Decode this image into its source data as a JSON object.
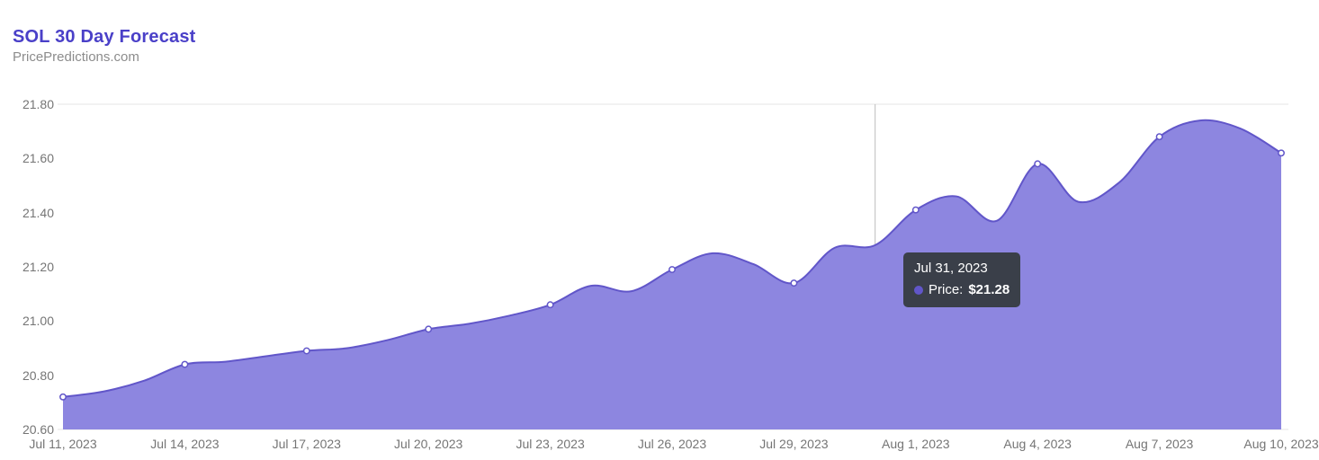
{
  "header": {
    "title": "SOL 30 Day Forecast",
    "subtitle": "PricePredictions.com"
  },
  "tooltip": {
    "date": "Jul 31, 2023",
    "series_label": "Price:",
    "value": "$21.28"
  },
  "colors": {
    "title": "#4a40c8",
    "subtitle": "#8c8c8c",
    "axis_text": "#757575",
    "line": "#6156c9",
    "area_fill": "#8d86e0",
    "marker_fill": "#ffffff",
    "grid": "#e5e5e5",
    "crosshair": "#bdbdbd",
    "tooltip_bg": "#3a3f49",
    "tooltip_text": "#ffffff",
    "series_dot": "#6156c9"
  },
  "chart_data": {
    "type": "area",
    "title": "SOL 30 Day Forecast",
    "xlabel": "",
    "ylabel": "",
    "ylim": [
      20.6,
      21.8
    ],
    "grid": "top-and-bottom-lines-only",
    "legend": "none",
    "highlight_index": 20,
    "x": [
      "Jul 11, 2023",
      "Jul 12, 2023",
      "Jul 13, 2023",
      "Jul 14, 2023",
      "Jul 15, 2023",
      "Jul 16, 2023",
      "Jul 17, 2023",
      "Jul 18, 2023",
      "Jul 19, 2023",
      "Jul 20, 2023",
      "Jul 21, 2023",
      "Jul 22, 2023",
      "Jul 23, 2023",
      "Jul 24, 2023",
      "Jul 25, 2023",
      "Jul 26, 2023",
      "Jul 27, 2023",
      "Jul 28, 2023",
      "Jul 29, 2023",
      "Jul 30, 2023",
      "Jul 31, 2023",
      "Aug 1, 2023",
      "Aug 2, 2023",
      "Aug 3, 2023",
      "Aug 4, 2023",
      "Aug 5, 2023",
      "Aug 6, 2023",
      "Aug 7, 2023",
      "Aug 8, 2023",
      "Aug 9, 2023",
      "Aug 10, 2023"
    ],
    "values": [
      20.72,
      20.74,
      20.78,
      20.84,
      20.85,
      20.87,
      20.89,
      20.9,
      20.93,
      20.97,
      20.99,
      21.02,
      21.06,
      21.13,
      21.11,
      21.19,
      21.25,
      21.21,
      21.14,
      21.27,
      21.28,
      21.41,
      21.46,
      21.37,
      21.58,
      21.44,
      21.51,
      21.68,
      21.74,
      21.71,
      21.62
    ],
    "y_tick_labels": [
      "21.80",
      "21.60",
      "21.40",
      "21.20",
      "21.00",
      "20.80",
      "20.60"
    ],
    "x_tick_labels": [
      "Jul 11, 2023",
      "Jul 14, 2023",
      "Jul 17, 2023",
      "Jul 20, 2023",
      "Jul 23, 2023",
      "Jul 26, 2023",
      "Jul 29, 2023",
      "Aug 1, 2023",
      "Aug 4, 2023",
      "Aug 7, 2023",
      "Aug 10, 2023"
    ]
  }
}
